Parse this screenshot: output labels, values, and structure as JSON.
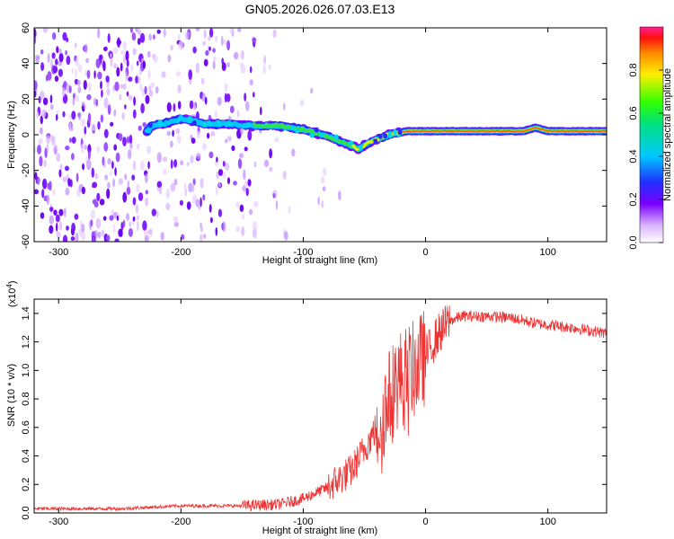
{
  "title": "GN05.2026.026.07.03.E13",
  "chart_data": [
    {
      "type": "heatmap",
      "name": "spectrogram",
      "xlabel": "Height of straight line (km)",
      "ylabel": "Frequency (Hz)",
      "xlim": [
        -320,
        148
      ],
      "ylim": [
        -60,
        60
      ],
      "xticks": [
        -300,
        -200,
        -100,
        0,
        100
      ],
      "yticks": [
        -60,
        -40,
        -20,
        0,
        20,
        40,
        60
      ],
      "ridge": [
        {
          "x": -225,
          "y": 5
        },
        {
          "x": -210,
          "y": 7
        },
        {
          "x": -200,
          "y": 9
        },
        {
          "x": -190,
          "y": 8
        },
        {
          "x": -180,
          "y": 6
        },
        {
          "x": -160,
          "y": 6
        },
        {
          "x": -140,
          "y": 5
        },
        {
          "x": -120,
          "y": 5
        },
        {
          "x": -100,
          "y": 3
        },
        {
          "x": -80,
          "y": -1
        },
        {
          "x": -65,
          "y": -5
        },
        {
          "x": -55,
          "y": -8
        },
        {
          "x": -45,
          "y": -4
        },
        {
          "x": -30,
          "y": 0
        },
        {
          "x": -15,
          "y": 2
        },
        {
          "x": 0,
          "y": 2
        },
        {
          "x": 20,
          "y": 2
        },
        {
          "x": 50,
          "y": 2
        },
        {
          "x": 80,
          "y": 2
        },
        {
          "x": 90,
          "y": 4
        },
        {
          "x": 100,
          "y": 2
        },
        {
          "x": 148,
          "y": 2
        }
      ],
      "colorbar": {
        "label": "Normalized spectral amplitude",
        "range": [
          0,
          1
        ],
        "ticks": [
          "0.0",
          "0.2",
          "0.4",
          "0.6",
          "0.8"
        ],
        "tick_values": [
          0.0,
          0.2,
          0.4,
          0.6,
          0.8
        ]
      }
    },
    {
      "type": "line",
      "name": "snr",
      "xlabel": "Height of straight line (km)",
      "ylabel": "SNR (10 * v/v)",
      "y_multiplier": "(x10",
      "y_multiplier_exp": "4",
      "y_multiplier_close": ")",
      "xlim": [
        -320,
        148
      ],
      "ylim": [
        0,
        1.5
      ],
      "xticks": [
        -300,
        -200,
        -100,
        0,
        100
      ],
      "yticks": [
        "0.0",
        "0.2",
        "0.4",
        "0.6",
        "0.8",
        "1.0",
        "1.2",
        "1.4"
      ],
      "ytick_values": [
        0.0,
        0.2,
        0.4,
        0.6,
        0.8,
        1.0,
        1.2,
        1.4
      ],
      "color": "#ee3333",
      "series": [
        {
          "name": "SNR",
          "x": [
            -320,
            -250,
            -200,
            -150,
            -120,
            -100,
            -80,
            -60,
            -50,
            -40,
            -35,
            -30,
            -25,
            -20,
            -10,
            0,
            10,
            20,
            30,
            50,
            70,
            90,
            100,
            120,
            148
          ],
          "y": [
            0.03,
            0.03,
            0.05,
            0.05,
            0.06,
            0.1,
            0.18,
            0.3,
            0.45,
            0.6,
            0.7,
            0.8,
            0.9,
            0.95,
            1.0,
            1.1,
            1.25,
            1.35,
            1.38,
            1.38,
            1.37,
            1.33,
            1.32,
            1.3,
            1.26
          ]
        }
      ]
    }
  ]
}
